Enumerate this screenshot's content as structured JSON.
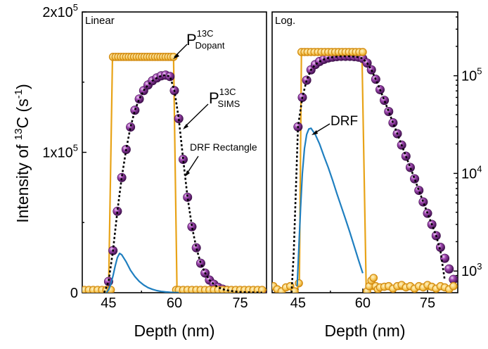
{
  "y_axis_label": "Intensity of ",
  "y_axis_label_sup": "13",
  "y_axis_label_mid": "C (s",
  "y_axis_label_sup2": "-1",
  "y_axis_label_end": ")",
  "colors": {
    "sims": "#7a2a8c",
    "dopant": "#e8a317",
    "drf": "#1f7fc0",
    "dashed": "#000000"
  },
  "chart_data": [
    {
      "type": "line",
      "panel_label": "Linear",
      "xlabel": "Depth (nm)",
      "xlim": [
        39,
        81
      ],
      "ylim": [
        0,
        200000
      ],
      "xticks": [
        45,
        60,
        75
      ],
      "yticks": [
        {
          "value": 0,
          "label": "0"
        },
        {
          "value": 100000,
          "label": "1x10",
          "sup": "5"
        },
        {
          "value": 200000,
          "label": "2x10",
          "sup": "5"
        }
      ],
      "annotations": [
        {
          "text": "P",
          "sup": "13C",
          "sub": "Dopant",
          "series": "dopant"
        },
        {
          "text": "P",
          "sup": "13C",
          "sub": "SIMS",
          "series": "sims"
        },
        {
          "text": "DRF  Rectangle",
          "series": "fit"
        }
      ],
      "series": [
        {
          "key": "sims",
          "style": "spheres",
          "x": [
            40,
            41,
            42,
            43,
            44,
            45,
            46,
            47,
            48,
            49,
            50,
            51,
            52,
            53,
            54,
            55,
            56,
            57,
            58,
            59,
            60,
            61,
            62,
            63,
            64,
            65,
            66,
            67,
            68,
            69,
            70,
            71,
            72,
            73,
            74,
            75,
            76,
            77,
            78,
            79,
            80
          ],
          "y": [
            0,
            0,
            0,
            0,
            0,
            8000,
            30000,
            58000,
            82000,
            102000,
            118000,
            130000,
            138000,
            144000,
            148000,
            151000,
            153000,
            154500,
            155000,
            154000,
            144000,
            124000,
            95000,
            68000,
            47000,
            32000,
            21000,
            14000,
            9000,
            6000,
            3800,
            2500,
            1700,
            1200,
            800,
            550,
            400,
            300,
            200,
            150,
            100
          ]
        },
        {
          "key": "dopant",
          "style": "rings",
          "x": [
            39.5,
            40.5,
            41.5,
            42.5,
            43.5,
            44.5,
            45.5,
            46,
            46.6,
            47.2,
            47.8,
            48.4,
            49,
            49.6,
            50.2,
            50.8,
            51.4,
            52,
            52.6,
            53.2,
            53.8,
            54.4,
            55,
            55.6,
            56.2,
            56.8,
            57.4,
            58,
            58.6,
            59.2,
            59.8,
            60.4,
            61,
            62,
            63,
            64,
            65,
            66,
            67,
            68,
            69,
            70,
            71,
            72,
            73,
            74,
            75,
            76,
            77,
            78,
            79,
            80
          ],
          "y": [
            2000,
            2000,
            2000,
            2000,
            2000,
            2000,
            2000,
            168000,
            168000,
            168000,
            168000,
            168000,
            168000,
            168000,
            168000,
            168000,
            168000,
            168000,
            168000,
            168000,
            168000,
            168000,
            168000,
            168000,
            168000,
            168000,
            168000,
            168000,
            168000,
            168000,
            168000,
            2000,
            2000,
            2000,
            2000,
            2000,
            2000,
            2000,
            2000,
            2000,
            2000,
            2000,
            2000,
            2000,
            2000,
            2000,
            2000,
            2000,
            2000,
            2000,
            2000,
            2000
          ]
        },
        {
          "key": "dopant_line",
          "style": "line",
          "x": [
            39,
            45,
            45.9,
            59.8,
            60.6,
            81
          ],
          "y": [
            2000,
            2000,
            168000,
            168000,
            2000,
            2000
          ]
        },
        {
          "key": "drf",
          "style": "line",
          "x": [
            44.5,
            45,
            45.5,
            46,
            46.5,
            47,
            47.5,
            48,
            49,
            50,
            51,
            52,
            53,
            54,
            55,
            56,
            57,
            58,
            59,
            60,
            61
          ],
          "y": [
            0,
            2000,
            6000,
            12000,
            19000,
            25000,
            28000,
            27000,
            22000,
            16000,
            11500,
            8000,
            5500,
            3600,
            2400,
            1500,
            900,
            550,
            300,
            150,
            50
          ]
        },
        {
          "key": "fit",
          "style": "dashed",
          "x": [
            44,
            45,
            46,
            47,
            48,
            49,
            50,
            51,
            52,
            53,
            54,
            55,
            56,
            57,
            58,
            59,
            60,
            61,
            62,
            63,
            64,
            65,
            66,
            67,
            68,
            69,
            70,
            71,
            72,
            73,
            74,
            75,
            76,
            77,
            78,
            79,
            80
          ],
          "y": [
            0,
            8000,
            30000,
            58000,
            82000,
            102000,
            118000,
            130000,
            138000,
            144000,
            148000,
            151000,
            153000,
            154500,
            155000,
            154000,
            144000,
            124000,
            95000,
            68000,
            47000,
            32000,
            21000,
            14000,
            9000,
            6000,
            3800,
            2500,
            1700,
            1200,
            800,
            550,
            400,
            300,
            200,
            150,
            100
          ]
        }
      ]
    },
    {
      "type": "line",
      "panel_label": "Log.",
      "xlabel": "Depth (nm)",
      "xlim": [
        39,
        82
      ],
      "ylim": [
        600,
        450000
      ],
      "yscale": "log",
      "yticks": [
        {
          "value": 1000,
          "label": "10",
          "sup": "3"
        },
        {
          "value": 10000,
          "label": "10",
          "sup": "4"
        },
        {
          "value": 100000,
          "label": "10",
          "sup": "5"
        }
      ],
      "xticks": [
        45,
        60,
        75
      ],
      "annotations": [
        {
          "text": "DRF",
          "series": "drf"
        }
      ],
      "series": [
        {
          "key": "sims",
          "style": "spheres",
          "x": [
            45,
            46,
            47,
            48,
            49,
            50,
            51,
            52,
            53,
            54,
            55,
            56,
            57,
            58,
            59,
            60,
            61,
            62,
            63,
            64,
            65,
            66,
            67,
            68,
            69,
            70,
            71,
            72,
            73,
            74,
            75,
            76,
            77,
            78,
            79,
            80,
            81
          ],
          "y": [
            30000,
            60000,
            90000,
            115000,
            130000,
            140000,
            147000,
            152000,
            155000,
            157000,
            158000,
            158000,
            158000,
            157000,
            155000,
            150000,
            135000,
            115000,
            92000,
            72000,
            56000,
            43000,
            33000,
            25500,
            19500,
            15000,
            11500,
            8800,
            6700,
            5100,
            3900,
            3000,
            2300,
            1750,
            1350,
            1050,
            820
          ]
        },
        {
          "key": "dopant",
          "style": "rings",
          "x": [
            39.3,
            40.2,
            41.2,
            42.2,
            43.2,
            44.2,
            45.2,
            45.8,
            46.5,
            47.2,
            48,
            48.8,
            49.6,
            50.4,
            51.2,
            52,
            52.8,
            53.6,
            54.4,
            55.2,
            56,
            56.8,
            57.6,
            58.4,
            59.2,
            60,
            61,
            61.5,
            62,
            62.5,
            63,
            63.5,
            64,
            65,
            66,
            67,
            68,
            69,
            70,
            71,
            72,
            73,
            74,
            75,
            76,
            77,
            78,
            79,
            80,
            81
          ],
          "y": [
            700,
            650,
            620,
            680,
            700,
            620,
            750,
            175000,
            175000,
            175000,
            175000,
            175000,
            175000,
            175000,
            175000,
            175000,
            175000,
            175000,
            175000,
            175000,
            175000,
            175000,
            175000,
            175000,
            175000,
            175000,
            620,
            700,
            800,
            850,
            700,
            650,
            680,
            690,
            700,
            660,
            700,
            720,
            680,
            700,
            660,
            700,
            680,
            720,
            690,
            660,
            700,
            680,
            650,
            700
          ]
        },
        {
          "key": "dopant_line",
          "style": "line",
          "x": [
            44.5,
            45.3,
            45.8,
            59.8,
            60.8,
            81
          ],
          "y": [
            650,
            700,
            175000,
            175000,
            650,
            650
          ]
        },
        {
          "key": "drf",
          "style": "line",
          "x": [
            44.8,
            45.2,
            45.6,
            46,
            46.5,
            47,
            47.5,
            48,
            49,
            50,
            51,
            52,
            53,
            54,
            55,
            56,
            57,
            58,
            59,
            60
          ],
          "y": [
            700,
            1800,
            4500,
            10000,
            18000,
            25000,
            28500,
            29000,
            25000,
            20000,
            15000,
            11500,
            8500,
            6200,
            4600,
            3400,
            2500,
            1800,
            1300,
            950
          ]
        },
        {
          "key": "fit",
          "style": "dashed",
          "x": [
            43.5,
            44,
            45,
            46,
            47,
            48,
            49,
            50,
            51,
            52,
            53,
            54,
            55,
            56,
            57,
            58,
            59,
            60,
            61,
            62,
            63,
            64,
            65,
            66,
            67,
            68,
            69,
            70,
            71,
            72,
            73,
            74,
            75,
            76,
            77,
            78,
            79
          ],
          "y": [
            600,
            1500,
            30000,
            60000,
            90000,
            115000,
            130000,
            140000,
            147000,
            152000,
            155000,
            157000,
            158000,
            158000,
            158000,
            157000,
            155000,
            150000,
            135000,
            115000,
            92000,
            72000,
            56000,
            43000,
            33000,
            25500,
            19500,
            15000,
            11500,
            8800,
            6700,
            5100,
            3900,
            3000,
            2300,
            1600,
            800
          ]
        }
      ]
    }
  ]
}
